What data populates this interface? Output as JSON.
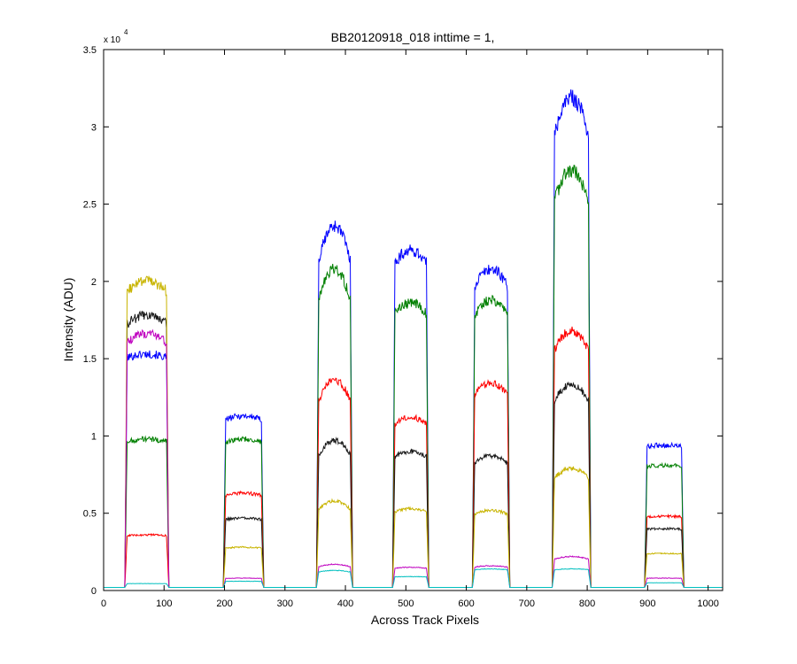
{
  "chart_data": {
    "type": "line",
    "title": "BB20120918_018 inttime = 1,",
    "xlabel": "Across Track Pixels",
    "ylabel": "Intensity (ADU)",
    "y_exponent_label": "x 10",
    "y_exponent_power": "4",
    "xlim": [
      0,
      1024
    ],
    "ylim": [
      0,
      35000
    ],
    "x_ticks": [
      0,
      100,
      200,
      300,
      400,
      500,
      600,
      700,
      800,
      900,
      1000
    ],
    "y_ticks": [
      0,
      5000,
      10000,
      15000,
      20000,
      25000,
      30000,
      35000
    ],
    "y_tick_labels": [
      "0",
      "0.5",
      "1",
      "1.5",
      "2",
      "2.5",
      "3",
      "3.5"
    ],
    "grid": false,
    "baseline": 200,
    "blocks": [
      {
        "x_start": 35,
        "x_end": 108
      },
      {
        "x_start": 198,
        "x_end": 265
      },
      {
        "x_start": 352,
        "x_end": 412
      },
      {
        "x_start": 478,
        "x_end": 538
      },
      {
        "x_start": 610,
        "x_end": 672
      },
      {
        "x_start": 742,
        "x_end": 806
      },
      {
        "x_start": 895,
        "x_end": 960
      }
    ],
    "series": [
      {
        "color": "#0000ff",
        "peaks": [
          15300,
          11300,
          23600,
          22000,
          20800,
          31900,
          9400
        ],
        "shape": [
          0.98,
          0.97,
          0.87,
          0.95,
          0.93,
          0.9,
          0.99
        ]
      },
      {
        "color": "#007f00",
        "peaks": [
          9800,
          9800,
          20800,
          18600,
          18800,
          27200,
          8100
        ],
        "shape": [
          0.98,
          0.97,
          0.87,
          0.95,
          0.93,
          0.9,
          0.99
        ]
      },
      {
        "color": "#ff0000",
        "peaks": [
          3600,
          6300,
          13600,
          11200,
          13400,
          16800,
          4800
        ],
        "shape": [
          0.98,
          0.97,
          0.87,
          0.95,
          0.93,
          0.9,
          0.99
        ]
      },
      {
        "color": "#1a1a1a",
        "peaks": [
          17800,
          4700,
          9700,
          9000,
          8700,
          13300,
          4000
        ],
        "shape": [
          0.96,
          0.97,
          0.87,
          0.95,
          0.93,
          0.9,
          0.99
        ]
      },
      {
        "color": "#c8b400",
        "peaks": [
          20000,
          2800,
          5800,
          5300,
          5200,
          7900,
          2400
        ],
        "shape": [
          0.96,
          0.97,
          0.87,
          0.95,
          0.93,
          0.9,
          0.99
        ]
      },
      {
        "color": "#bf00bf",
        "peaks": [
          16600,
          800,
          1700,
          1500,
          1600,
          2200,
          800
        ],
        "shape": [
          0.96,
          0.97,
          0.87,
          0.95,
          0.93,
          0.9,
          0.99
        ]
      },
      {
        "color": "#00bfbf",
        "peaks": [
          450,
          600,
          1300,
          900,
          1400,
          1400,
          500
        ],
        "shape": [
          0.99,
          0.99,
          0.9,
          0.98,
          0.95,
          0.95,
          0.99
        ]
      }
    ]
  }
}
